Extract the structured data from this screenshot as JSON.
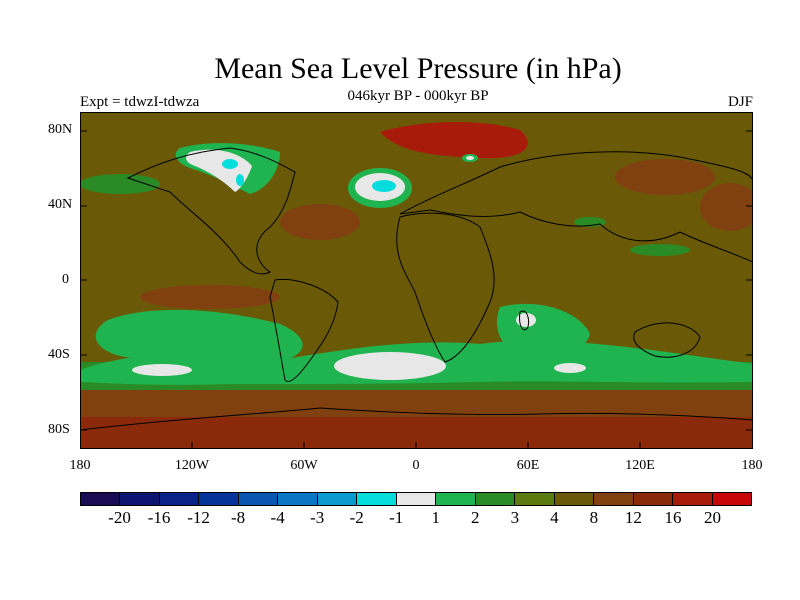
{
  "title": "Mean Sea Level Pressure (in hPa)",
  "subtitle": "046kyr BP - 000kyr BP",
  "left_label": "Expt = tdwzI-tdwza",
  "right_label": "DJF",
  "y_ticks": [
    "80N",
    "40N",
    "0",
    "40S",
    "80S"
  ],
  "x_ticks": [
    "180",
    "120W",
    "60W",
    "0",
    "60E",
    "120E",
    "180"
  ],
  "colorbar": {
    "colors": [
      "#1a0b55",
      "#0d1573",
      "#0b2286",
      "#063399",
      "#0a55b0",
      "#0b77c4",
      "#0b99cf",
      "#05dddd",
      "#e7e7e7",
      "#20b450",
      "#2a8a25",
      "#5b7a10",
      "#6a5a08",
      "#804010",
      "#8a2a0a",
      "#a81a0a",
      "#c80808"
    ],
    "labels": [
      "-20",
      "-16",
      "-12",
      "-8",
      "-4",
      "-3",
      "-2",
      "-1",
      "1",
      "2",
      "3",
      "4",
      "8",
      "12",
      "16",
      "20"
    ]
  }
}
